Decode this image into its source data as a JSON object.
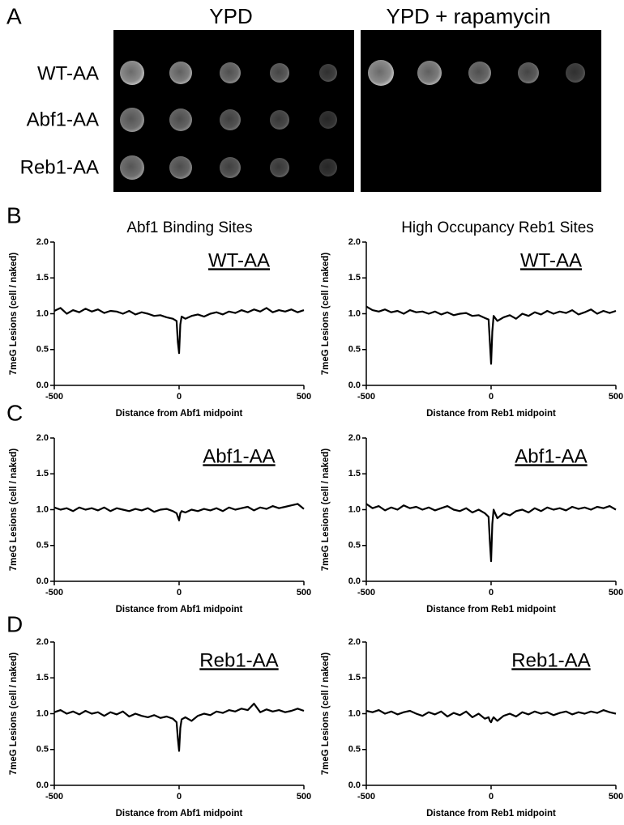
{
  "panel_labels": [
    "A",
    "B",
    "C",
    "D"
  ],
  "panel_a": {
    "conditions": [
      "YPD",
      "YPD + rapamycin"
    ],
    "strains": [
      "WT-AA",
      "Abf1-AA",
      "Reb1-AA"
    ]
  },
  "column_titles": [
    "Abf1 Binding Sites",
    "High Occupancy Reb1 Sites"
  ],
  "chart_data": [
    {
      "type": "line",
      "title": "WT-AA",
      "xlabel": "Distance from Abf1 midpoint",
      "ylabel": "7meG Lesions (cell / naked)",
      "x": [
        -500,
        -475,
        -450,
        -425,
        -400,
        -375,
        -350,
        -325,
        -300,
        -275,
        -250,
        -225,
        -200,
        -175,
        -150,
        -125,
        -100,
        -75,
        -50,
        -25,
        -10,
        -5,
        0,
        5,
        10,
        25,
        50,
        75,
        100,
        125,
        150,
        175,
        200,
        225,
        250,
        275,
        300,
        325,
        350,
        375,
        400,
        425,
        450,
        475,
        500
      ],
      "values": [
        1.04,
        1.08,
        1.0,
        1.05,
        1.02,
        1.07,
        1.03,
        1.06,
        1.01,
        1.04,
        1.03,
        1.0,
        1.04,
        0.99,
        1.02,
        1.0,
        0.97,
        0.98,
        0.95,
        0.93,
        0.9,
        0.6,
        0.45,
        0.85,
        0.96,
        0.93,
        0.97,
        0.99,
        0.96,
        1.0,
        1.02,
        0.99,
        1.03,
        1.01,
        1.05,
        1.02,
        1.06,
        1.03,
        1.08,
        1.02,
        1.05,
        1.03,
        1.06,
        1.02,
        1.05
      ],
      "color": "#000000",
      "xlim": [
        -500,
        500
      ],
      "xticks": [
        -500,
        0,
        500
      ],
      "ylim": [
        0,
        2
      ],
      "yticks": [
        {
          "value": 0,
          "label": "0.0"
        },
        {
          "value": 0.5,
          "label": "0.5"
        },
        {
          "value": 1,
          "label": "1.0"
        },
        {
          "value": 1.5,
          "label": "1.5"
        },
        {
          "value": 2,
          "label": "2.0"
        }
      ]
    },
    {
      "type": "line",
      "title": "WT-AA",
      "xlabel": "Distance from Reb1 midpoint",
      "ylabel": "7meG Lesions (cell / naked)",
      "x": [
        -500,
        -475,
        -450,
        -425,
        -400,
        -375,
        -350,
        -325,
        -300,
        -275,
        -250,
        -225,
        -200,
        -175,
        -150,
        -125,
        -100,
        -75,
        -50,
        -25,
        -10,
        -5,
        0,
        5,
        10,
        25,
        50,
        75,
        100,
        125,
        150,
        175,
        200,
        225,
        250,
        275,
        300,
        325,
        350,
        375,
        400,
        425,
        450,
        475,
        500
      ],
      "values": [
        1.1,
        1.05,
        1.03,
        1.06,
        1.02,
        1.04,
        1.0,
        1.05,
        1.02,
        1.03,
        1.0,
        1.03,
        0.99,
        1.02,
        0.98,
        1.0,
        1.01,
        0.97,
        0.98,
        0.94,
        0.92,
        0.6,
        0.3,
        0.75,
        0.97,
        0.9,
        0.95,
        0.98,
        0.93,
        1.0,
        0.97,
        1.02,
        0.99,
        1.04,
        1.0,
        1.03,
        1.01,
        1.05,
        0.99,
        1.02,
        1.06,
        1.0,
        1.04,
        1.01,
        1.04
      ],
      "color": "#000000",
      "xlim": [
        -500,
        500
      ],
      "xticks": [
        -500,
        0,
        500
      ],
      "ylim": [
        0,
        2
      ],
      "yticks": [
        {
          "value": 0,
          "label": "0.0"
        },
        {
          "value": 0.5,
          "label": "0.5"
        },
        {
          "value": 1,
          "label": "1.0"
        },
        {
          "value": 1.5,
          "label": "1.5"
        },
        {
          "value": 2,
          "label": "2.0"
        }
      ]
    },
    {
      "type": "line",
      "title": "Abf1-AA",
      "xlabel": "Distance from Abf1 midpoint",
      "ylabel": "7meG Lesions (cell / naked)",
      "x": [
        -500,
        -475,
        -450,
        -425,
        -400,
        -375,
        -350,
        -325,
        -300,
        -275,
        -250,
        -225,
        -200,
        -175,
        -150,
        -125,
        -100,
        -75,
        -50,
        -25,
        -10,
        -5,
        0,
        5,
        10,
        25,
        50,
        75,
        100,
        125,
        150,
        175,
        200,
        225,
        250,
        275,
        300,
        325,
        350,
        375,
        400,
        425,
        450,
        475,
        500
      ],
      "values": [
        1.03,
        1.0,
        1.02,
        0.98,
        1.03,
        1.0,
        1.02,
        0.99,
        1.03,
        0.98,
        1.02,
        1.0,
        0.98,
        1.01,
        0.99,
        1.02,
        0.97,
        1.0,
        1.01,
        0.98,
        0.95,
        0.9,
        0.85,
        0.95,
        0.98,
        0.96,
        1.0,
        0.98,
        1.01,
        0.99,
        1.02,
        0.98,
        1.03,
        1.0,
        1.02,
        1.04,
        0.99,
        1.03,
        1.01,
        1.05,
        1.02,
        1.04,
        1.06,
        1.08,
        1.01
      ],
      "color": "#000000",
      "xlim": [
        -500,
        500
      ],
      "xticks": [
        -500,
        0,
        500
      ],
      "ylim": [
        0,
        2
      ],
      "yticks": [
        {
          "value": 0,
          "label": "0.0"
        },
        {
          "value": 0.5,
          "label": "0.5"
        },
        {
          "value": 1,
          "label": "1.0"
        },
        {
          "value": 1.5,
          "label": "1.5"
        },
        {
          "value": 2,
          "label": "2.0"
        }
      ]
    },
    {
      "type": "line",
      "title": "Abf1-AA",
      "xlabel": "Distance from Reb1 midpoint",
      "ylabel": "7meG Lesions (cell / naked)",
      "x": [
        -500,
        -475,
        -450,
        -425,
        -400,
        -375,
        -350,
        -325,
        -300,
        -275,
        -250,
        -225,
        -200,
        -175,
        -150,
        -125,
        -100,
        -75,
        -50,
        -25,
        -10,
        -5,
        0,
        5,
        10,
        25,
        50,
        75,
        100,
        125,
        150,
        175,
        200,
        225,
        250,
        275,
        300,
        325,
        350,
        375,
        400,
        425,
        450,
        475,
        500
      ],
      "values": [
        1.08,
        1.02,
        1.05,
        0.99,
        1.03,
        1.0,
        1.06,
        1.02,
        1.04,
        1.0,
        1.03,
        0.99,
        1.02,
        1.05,
        1.0,
        0.98,
        1.02,
        0.96,
        1.0,
        0.95,
        0.9,
        0.55,
        0.28,
        0.8,
        1.0,
        0.88,
        0.95,
        0.92,
        0.98,
        1.0,
        0.96,
        1.02,
        0.98,
        1.03,
        1.0,
        1.02,
        0.99,
        1.04,
        1.01,
        1.03,
        1.0,
        1.04,
        1.02,
        1.05,
        1.0
      ],
      "color": "#000000",
      "xlim": [
        -500,
        500
      ],
      "xticks": [
        -500,
        0,
        500
      ],
      "ylim": [
        0,
        2
      ],
      "yticks": [
        {
          "value": 0,
          "label": "0.0"
        },
        {
          "value": 0.5,
          "label": "0.5"
        },
        {
          "value": 1,
          "label": "1.0"
        },
        {
          "value": 1.5,
          "label": "1.5"
        },
        {
          "value": 2,
          "label": "2.0"
        }
      ]
    },
    {
      "type": "line",
      "title": "Reb1-AA",
      "xlabel": "Distance from Abf1 midpoint",
      "ylabel": "7meG Lesions (cell / naked)",
      "x": [
        -500,
        -475,
        -450,
        -425,
        -400,
        -375,
        -350,
        -325,
        -300,
        -275,
        -250,
        -225,
        -200,
        -175,
        -150,
        -125,
        -100,
        -75,
        -50,
        -25,
        -10,
        -5,
        0,
        5,
        10,
        25,
        50,
        75,
        100,
        125,
        150,
        175,
        200,
        225,
        250,
        275,
        300,
        325,
        350,
        375,
        400,
        425,
        450,
        475,
        500
      ],
      "values": [
        1.02,
        1.05,
        1.0,
        1.03,
        0.99,
        1.04,
        1.0,
        1.02,
        0.97,
        1.02,
        0.99,
        1.03,
        0.96,
        1.0,
        0.97,
        0.95,
        0.98,
        0.94,
        0.96,
        0.93,
        0.88,
        0.65,
        0.48,
        0.8,
        0.92,
        0.95,
        0.9,
        0.97,
        1.0,
        0.98,
        1.03,
        1.01,
        1.05,
        1.03,
        1.07,
        1.05,
        1.14,
        1.02,
        1.06,
        1.03,
        1.05,
        1.02,
        1.04,
        1.07,
        1.04
      ],
      "color": "#000000",
      "xlim": [
        -500,
        500
      ],
      "xticks": [
        -500,
        0,
        500
      ],
      "ylim": [
        0,
        2
      ],
      "yticks": [
        {
          "value": 0,
          "label": "0.0"
        },
        {
          "value": 0.5,
          "label": "0.5"
        },
        {
          "value": 1,
          "label": "1.0"
        },
        {
          "value": 1.5,
          "label": "1.5"
        },
        {
          "value": 2,
          "label": "2.0"
        }
      ]
    },
    {
      "type": "line",
      "title": "Reb1-AA",
      "xlabel": "Distance from Reb1 midpoint",
      "ylabel": "7meG Lesions (cell / naked)",
      "x": [
        -500,
        -475,
        -450,
        -425,
        -400,
        -375,
        -350,
        -325,
        -300,
        -275,
        -250,
        -225,
        -200,
        -175,
        -150,
        -125,
        -100,
        -75,
        -50,
        -25,
        -10,
        -5,
        0,
        5,
        10,
        25,
        50,
        75,
        100,
        125,
        150,
        175,
        200,
        225,
        250,
        275,
        300,
        325,
        350,
        375,
        400,
        425,
        450,
        475,
        500
      ],
      "values": [
        1.04,
        1.02,
        1.05,
        1.0,
        1.03,
        0.99,
        1.02,
        1.04,
        1.0,
        0.97,
        1.02,
        0.99,
        1.03,
        0.96,
        1.01,
        0.98,
        1.03,
        0.95,
        1.0,
        0.93,
        0.95,
        0.9,
        0.88,
        0.92,
        0.95,
        0.9,
        0.97,
        1.0,
        0.96,
        1.02,
        0.99,
        1.03,
        1.0,
        1.02,
        0.98,
        1.01,
        1.03,
        0.99,
        1.02,
        1.0,
        1.03,
        1.01,
        1.05,
        1.02,
        1.0
      ],
      "color": "#000000",
      "xlim": [
        -500,
        500
      ],
      "xticks": [
        -500,
        0,
        500
      ],
      "ylim": [
        0,
        2
      ],
      "yticks": [
        {
          "value": 0,
          "label": "0.0"
        },
        {
          "value": 0.5,
          "label": "0.5"
        },
        {
          "value": 1,
          "label": "1.0"
        },
        {
          "value": 1.5,
          "label": "1.5"
        },
        {
          "value": 2,
          "label": "2.0"
        }
      ]
    }
  ]
}
